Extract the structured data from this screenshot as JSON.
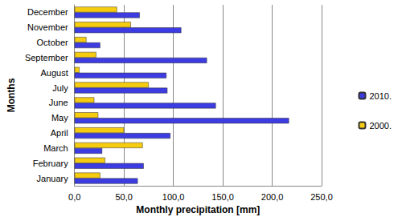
{
  "chart_data": {
    "type": "bar",
    "orientation": "horizontal",
    "x_label": "Monthly precipitation [mm]",
    "y_label": "Months",
    "categories": [
      "January",
      "February",
      "March",
      "April",
      "May",
      "June",
      "July",
      "August",
      "September",
      "October",
      "November",
      "December"
    ],
    "series": [
      {
        "name": "2010.",
        "color": "#3c3ce0",
        "values": [
          64,
          70,
          28,
          97,
          217,
          143,
          94,
          93,
          134,
          26,
          108,
          66
        ]
      },
      {
        "name": "2000.",
        "color": "#f5cc10",
        "values": [
          26,
          31,
          69,
          50,
          24,
          20,
          75,
          5,
          22,
          12,
          57,
          43
        ]
      }
    ],
    "xlim": [
      0,
      250
    ],
    "xticks": [
      {
        "value": 0,
        "label": "0,0"
      },
      {
        "value": 50,
        "label": "50,0"
      },
      {
        "value": 100,
        "label": "100,0"
      },
      {
        "value": 150,
        "label": "150,0"
      },
      {
        "value": 200,
        "label": "200,0"
      },
      {
        "value": 250,
        "label": "250,0"
      }
    ],
    "grid": true,
    "legend": "right"
  }
}
